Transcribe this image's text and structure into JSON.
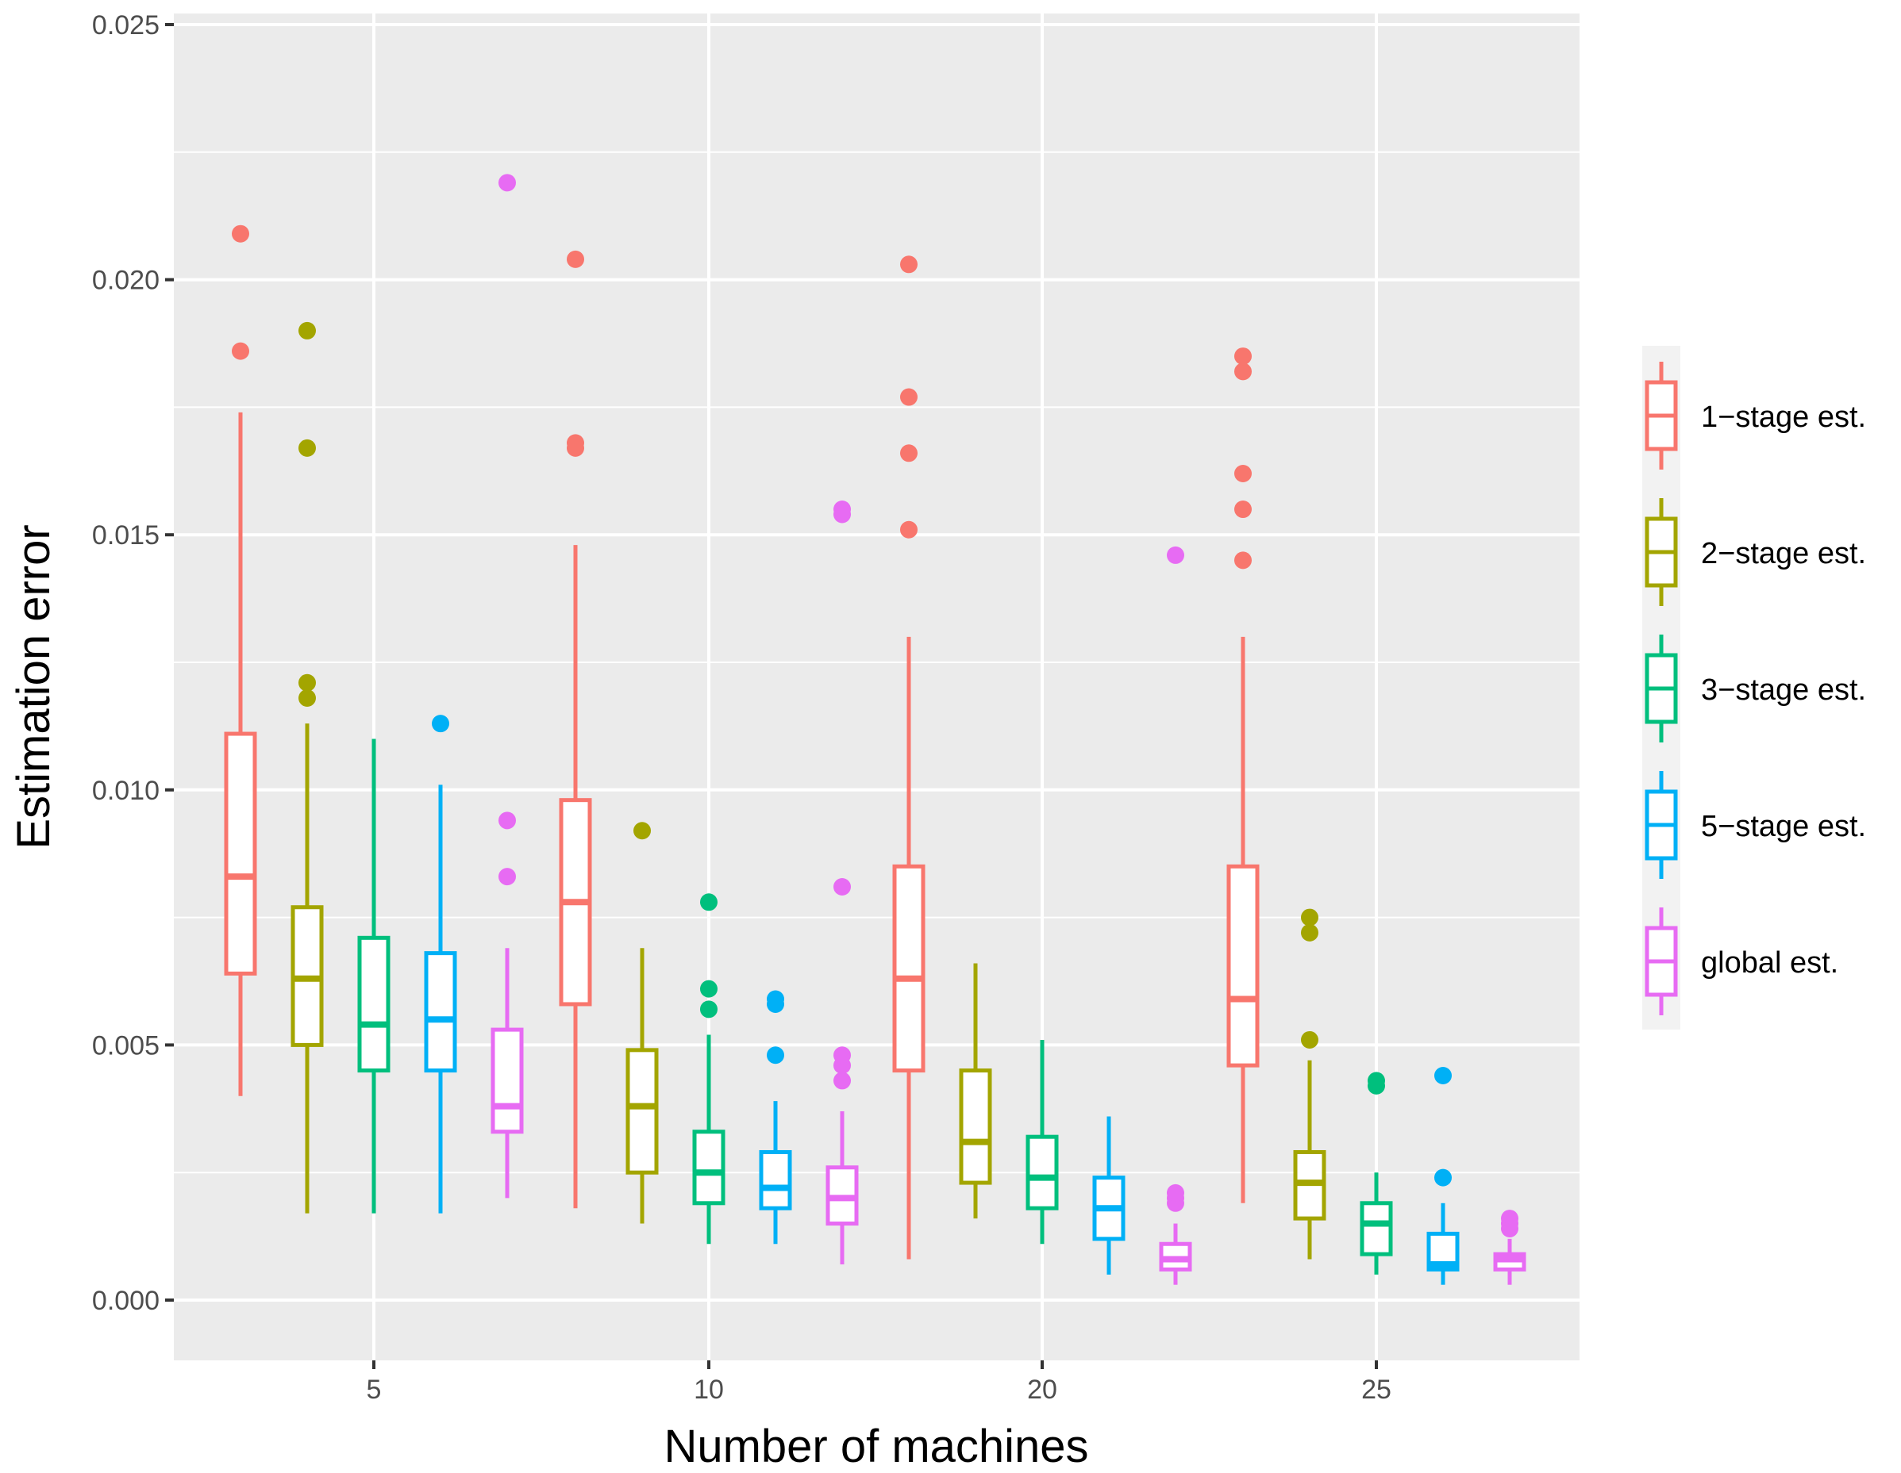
{
  "chart_data": {
    "type": "boxplot",
    "title": "",
    "xlabel": "Number of machines",
    "ylabel": "Estimation error",
    "ylim": [
      -0.0012,
      0.0251
    ],
    "yticks": [
      0.0,
      0.005,
      0.01,
      0.015,
      0.02,
      0.025
    ],
    "ytick_labels": [
      "0.000",
      "0.005",
      "0.010",
      "0.015",
      "0.020",
      "0.025"
    ],
    "categories": [
      "5",
      "10",
      "20",
      "25"
    ],
    "grid": true,
    "legend_position": "right",
    "series": [
      {
        "name": "1−stage est.",
        "color": "#F8766D",
        "boxes": [
          {
            "whisker_low": 0.004,
            "q1": 0.0064,
            "median": 0.0083,
            "q3": 0.0111,
            "whisker_high": 0.0174,
            "outliers": [
              0.0186,
              0.0209
            ]
          },
          {
            "whisker_low": 0.0018,
            "q1": 0.0058,
            "median": 0.0078,
            "q3": 0.0098,
            "whisker_high": 0.0148,
            "outliers": [
              0.0167,
              0.0168,
              0.0204
            ]
          },
          {
            "whisker_low": 0.0008,
            "q1": 0.0045,
            "median": 0.0063,
            "q3": 0.0085,
            "whisker_high": 0.013,
            "outliers": [
              0.0151,
              0.0166,
              0.0177,
              0.0203
            ]
          },
          {
            "whisker_low": 0.0019,
            "q1": 0.0046,
            "median": 0.0059,
            "q3": 0.0085,
            "whisker_high": 0.013,
            "outliers": [
              0.0145,
              0.0155,
              0.0162,
              0.0182,
              0.0185
            ]
          }
        ]
      },
      {
        "name": "2−stage est.",
        "color": "#A3A500",
        "boxes": [
          {
            "whisker_low": 0.0017,
            "q1": 0.005,
            "median": 0.0063,
            "q3": 0.0077,
            "whisker_high": 0.0113,
            "outliers": [
              0.0118,
              0.0121,
              0.0167,
              0.019
            ]
          },
          {
            "whisker_low": 0.0015,
            "q1": 0.0025,
            "median": 0.0038,
            "q3": 0.0049,
            "whisker_high": 0.0069,
            "outliers": [
              0.0092
            ]
          },
          {
            "whisker_low": 0.0016,
            "q1": 0.0023,
            "median": 0.0031,
            "q3": 0.0045,
            "whisker_high": 0.0066,
            "outliers": []
          },
          {
            "whisker_low": 0.0008,
            "q1": 0.0016,
            "median": 0.0023,
            "q3": 0.0029,
            "whisker_high": 0.0047,
            "outliers": [
              0.0051,
              0.0072,
              0.0075
            ]
          }
        ]
      },
      {
        "name": "3−stage est.",
        "color": "#00BF7D",
        "boxes": [
          {
            "whisker_low": 0.0017,
            "q1": 0.0045,
            "median": 0.0054,
            "q3": 0.0071,
            "whisker_high": 0.011,
            "outliers": []
          },
          {
            "whisker_low": 0.0011,
            "q1": 0.0019,
            "median": 0.0025,
            "q3": 0.0033,
            "whisker_high": 0.0052,
            "outliers": [
              0.0057,
              0.0061,
              0.0078
            ]
          },
          {
            "whisker_low": 0.0011,
            "q1": 0.0018,
            "median": 0.0024,
            "q3": 0.0032,
            "whisker_high": 0.0051,
            "outliers": []
          },
          {
            "whisker_low": 0.0005,
            "q1": 0.0009,
            "median": 0.0015,
            "q3": 0.0019,
            "whisker_high": 0.0025,
            "outliers": [
              0.0042,
              0.0043
            ]
          }
        ]
      },
      {
        "name": "5−stage est.",
        "color": "#00B0F6",
        "boxes": [
          {
            "whisker_low": 0.0017,
            "q1": 0.0045,
            "median": 0.0055,
            "q3": 0.0068,
            "whisker_high": 0.0101,
            "outliers": [
              0.0113
            ]
          },
          {
            "whisker_low": 0.0011,
            "q1": 0.0018,
            "median": 0.0022,
            "q3": 0.0029,
            "whisker_high": 0.0039,
            "outliers": [
              0.0048,
              0.0058,
              0.0059
            ]
          },
          {
            "whisker_low": 0.0005,
            "q1": 0.0012,
            "median": 0.0018,
            "q3": 0.0024,
            "whisker_high": 0.0036,
            "outliers": []
          },
          {
            "whisker_low": 0.0003,
            "q1": 0.0006,
            "median": 0.0007,
            "q3": 0.0013,
            "whisker_high": 0.0019,
            "outliers": [
              0.0024,
              0.0044
            ]
          }
        ]
      },
      {
        "name": "global est.",
        "color": "#E76BF3",
        "boxes": [
          {
            "whisker_low": 0.002,
            "q1": 0.0033,
            "median": 0.0038,
            "q3": 0.0053,
            "whisker_high": 0.0069,
            "outliers": [
              0.0083,
              0.0094,
              0.0219
            ]
          },
          {
            "whisker_low": 0.0007,
            "q1": 0.0015,
            "median": 0.002,
            "q3": 0.0026,
            "whisker_high": 0.0037,
            "outliers": [
              0.0043,
              0.0046,
              0.0048,
              0.0081,
              0.0154,
              0.0155
            ]
          },
          {
            "whisker_low": 0.0003,
            "q1": 0.0006,
            "median": 0.0008,
            "q3": 0.0011,
            "whisker_high": 0.0015,
            "outliers": [
              0.0019,
              0.002,
              0.0021,
              0.0146
            ]
          },
          {
            "whisker_low": 0.0003,
            "q1": 0.0006,
            "median": 0.0008,
            "q3": 0.0009,
            "whisker_high": 0.0012,
            "outliers": [
              0.0014,
              0.0015,
              0.0016
            ]
          }
        ]
      }
    ]
  }
}
